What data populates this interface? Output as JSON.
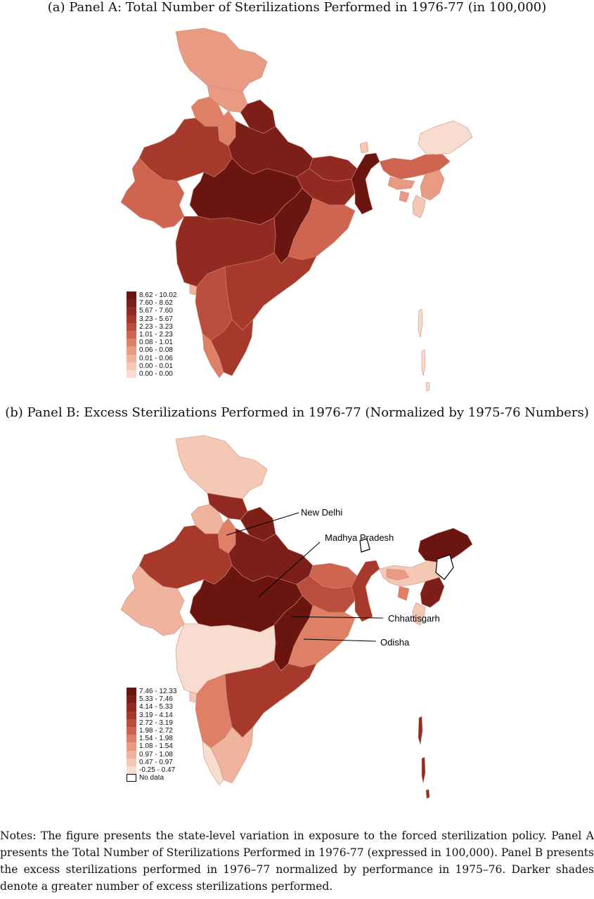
{
  "panel_a": {
    "caption": "(a) Panel A: Total Number of Sterilizations Performed in 1976-77 (in 100,000)",
    "legend": [
      {
        "label": "8.62 - 10.02",
        "color": "#6b1510"
      },
      {
        "label": "7.60 - 8.62",
        "color": "#7d1f19"
      },
      {
        "label": "5.67 - 7.60",
        "color": "#912a21"
      },
      {
        "label": "3.23 - 5.67",
        "color": "#a6392c"
      },
      {
        "label": "2.23 - 3.23",
        "color": "#bb4d3c"
      },
      {
        "label": "1.01 - 2.23",
        "color": "#cf6550"
      },
      {
        "label": "0.08 - 1.01",
        "color": "#df7f66"
      },
      {
        "label": "0.06 - 0.08",
        "color": "#e99a82"
      },
      {
        "label": "0.01 - 0.06",
        "color": "#f0b39e"
      },
      {
        "label": "0.00 - 0.01",
        "color": "#f5c8b6"
      },
      {
        "label": "0.00 - 0.00",
        "color": "#f8dccf"
      }
    ]
  },
  "panel_b": {
    "caption": "(b) Panel B: Excess Sterilizations Performed in 1976-77 (Normalized by 1975-76 Numbers)",
    "legend": [
      {
        "label": "7.46 - 12.33",
        "color": "#6b1510"
      },
      {
        "label": "5.33 - 7.46",
        "color": "#7d1f19"
      },
      {
        "label": "4.14 - 5.33",
        "color": "#912a21"
      },
      {
        "label": "3.19 - 4.14",
        "color": "#a6392c"
      },
      {
        "label": "2.72 - 3.19",
        "color": "#bb4d3c"
      },
      {
        "label": "1.98 - 2.72",
        "color": "#cf6550"
      },
      {
        "label": "1.54 - 1.98",
        "color": "#df7f66"
      },
      {
        "label": "1.08 - 1.54",
        "color": "#e99a82"
      },
      {
        "label": "0.97 - 1.08",
        "color": "#f0b39e"
      },
      {
        "label": "0.47 - 0.97",
        "color": "#f5c8b6"
      },
      {
        "label": "-0.25 - 0.47",
        "color": "#f8dccf"
      }
    ],
    "no_data_label": "No data",
    "annotations": {
      "new_delhi": "New Delhi",
      "madhya_pradesh": "Madhya Pradesh",
      "chhattisgarh": "Chhattisgarh",
      "odisha": "Odisha"
    }
  },
  "notes": "Notes: The figure presents the state-level variation in exposure to the forced sterilization policy. Panel A presents the Total Number of Sterilizations Performed in 1976-77 (expressed in 100,000). Panel B presents the excess sterilizations performed in 1976–77 normalized by performance in 1975–76. Darker shades denote a greater number of excess sterilizations performed."
}
